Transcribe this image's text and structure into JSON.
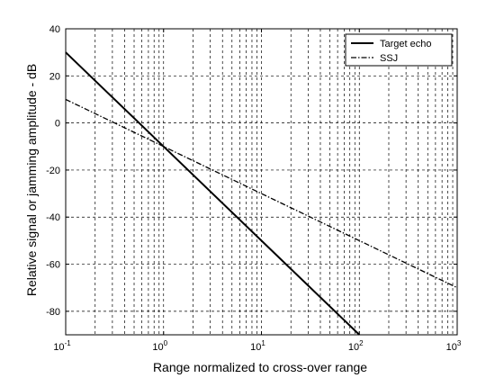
{
  "chart_data": {
    "type": "line",
    "title": "",
    "xlabel": "Range normalized to cross-over range",
    "ylabel": "Relative signal or jamming amplitude - dB",
    "xscale": "log",
    "xlim": [
      0.1,
      1000
    ],
    "ylim": [
      -90,
      40
    ],
    "x_ticks": [
      {
        "base": "10",
        "exp": "-1"
      },
      {
        "base": "10",
        "exp": "0"
      },
      {
        "base": "10",
        "exp": "1"
      },
      {
        "base": "10",
        "exp": "2"
      },
      {
        "base": "10",
        "exp": "3"
      }
    ],
    "y_ticks": [
      "-80",
      "-60",
      "-40",
      "-20",
      "0",
      "20",
      "40"
    ],
    "grid": true,
    "legend_position": "top-right",
    "series": [
      {
        "name": "Target echo",
        "style": "solid",
        "color": "#000000",
        "x": [
          0.1,
          1,
          10,
          100
        ],
        "y": [
          30,
          -10,
          -50,
          -90
        ]
      },
      {
        "name": "SSJ",
        "style": "dash-dot",
        "color": "#000000",
        "x": [
          0.1,
          1,
          10,
          100,
          1000
        ],
        "y": [
          10,
          -10,
          -30,
          -50,
          -70
        ]
      }
    ]
  }
}
